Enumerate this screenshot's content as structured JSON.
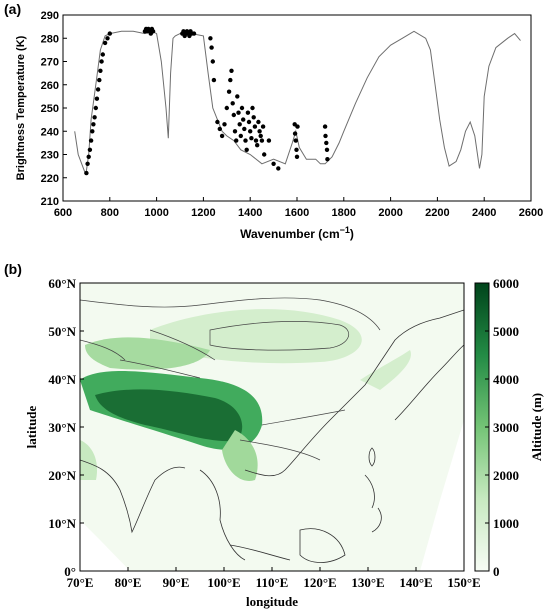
{
  "chart_data": [
    {
      "panel_label": "(a)",
      "type": "line+scatter",
      "xlabel": "Wavenumber (cm",
      "xlabel_sup": "−1",
      "xlabel_close": ")",
      "ylabel": "Brightness Temperature (K)",
      "xlim": [
        600,
        2600
      ],
      "ylim": [
        210,
        290
      ],
      "xticks": [
        "600",
        "800",
        "1000",
        "1200",
        "1400",
        "1600",
        "1800",
        "2000",
        "2200",
        "2400",
        "2600"
      ],
      "yticks": [
        "210",
        "220",
        "230",
        "240",
        "250",
        "260",
        "270",
        "280",
        "290"
      ],
      "series": [
        {
          "style": "line",
          "color": "#6e6e6e",
          "x": [
            650,
            665,
            680,
            695,
            700,
            710,
            720,
            740,
            760,
            780,
            800,
            850,
            900,
            950,
            980,
            1000,
            1020,
            1040,
            1050,
            1060,
            1070,
            1080,
            1100,
            1150,
            1200,
            1220,
            1240,
            1260,
            1280,
            1300,
            1330,
            1360,
            1400,
            1450,
            1500,
            1550,
            1580,
            1595,
            1610,
            1640,
            1680,
            1700,
            1720,
            1750,
            1780,
            1800,
            1850,
            1900,
            1950,
            2000,
            2050,
            2100,
            2150,
            2170,
            2190,
            2210,
            2230,
            2250,
            2280,
            2300,
            2320,
            2340,
            2360,
            2380,
            2390,
            2400,
            2420,
            2450,
            2500,
            2530,
            2555
          ],
          "y": [
            240,
            230,
            226,
            222,
            223,
            230,
            245,
            260,
            275,
            281,
            282,
            283,
            283,
            282,
            283,
            282,
            270,
            250,
            237,
            265,
            280,
            281,
            282,
            282,
            281,
            265,
            250,
            245,
            240,
            238,
            236,
            232,
            230,
            226,
            228,
            226,
            235,
            240,
            233,
            228,
            228,
            226,
            226,
            229,
            235,
            240,
            252,
            263,
            272,
            277,
            280,
            283,
            280,
            275,
            260,
            245,
            233,
            225,
            227,
            232,
            240,
            244,
            238,
            224,
            230,
            255,
            268,
            276,
            280,
            282,
            279
          ]
        },
        {
          "style": "markers",
          "color": "#000000",
          "x": [
            700,
            705,
            710,
            715,
            720,
            725,
            730,
            735,
            740,
            745,
            750,
            755,
            760,
            765,
            770,
            780,
            790,
            800,
            950,
            955,
            960,
            965,
            970,
            975,
            980,
            985,
            1110,
            1115,
            1120,
            1125,
            1130,
            1135,
            1140,
            1145,
            1150,
            1160,
            1230,
            1235,
            1240,
            1245,
            1260,
            1270,
            1280,
            1290,
            1300,
            1310,
            1315,
            1320,
            1325,
            1330,
            1335,
            1340,
            1345,
            1350,
            1355,
            1360,
            1365,
            1370,
            1375,
            1380,
            1385,
            1390,
            1395,
            1400,
            1405,
            1410,
            1415,
            1420,
            1425,
            1430,
            1435,
            1440,
            1445,
            1450,
            1455,
            1460,
            1480,
            1500,
            1520,
            1590,
            1592,
            1595,
            1598,
            1600,
            1602,
            1720,
            1722,
            1725,
            1728,
            1730
          ],
          "y": [
            222,
            226,
            229,
            232,
            236,
            240,
            243,
            246,
            250,
            254,
            258,
            262,
            266,
            270,
            273,
            278,
            280,
            282,
            283,
            284,
            283,
            284,
            283,
            282,
            284,
            283,
            282,
            283,
            281,
            282,
            283,
            282,
            281,
            283,
            282,
            282,
            280,
            276,
            270,
            262,
            244,
            241,
            238,
            243,
            250,
            257,
            262,
            266,
            252,
            247,
            240,
            236,
            255,
            248,
            243,
            238,
            250,
            245,
            241,
            236,
            232,
            248,
            244,
            240,
            237,
            250,
            246,
            242,
            236,
            234,
            244,
            240,
            238,
            236,
            242,
            230,
            236,
            226,
            224,
            243,
            239,
            236,
            232,
            229,
            242,
            242,
            238,
            235,
            232,
            228
          ]
        }
      ]
    },
    {
      "panel_label": "(b)",
      "type": "heatmap",
      "xlabel": "longitude",
      "ylabel": "latitude",
      "xticks": [
        "70°E",
        "80°E",
        "90°E",
        "100°E",
        "110°E",
        "120°E",
        "130°E",
        "140°E",
        "150°E"
      ],
      "yticks": [
        "0°",
        "10°N",
        "20°N",
        "30°N",
        "40°N",
        "50°N",
        "60°N"
      ],
      "xlim": [
        70,
        150
      ],
      "ylim": [
        0,
        60
      ],
      "colorbar_label": "Altitude (m)",
      "colorbar_ticks": [
        "0",
        "1000",
        "2000",
        "3000",
        "4000",
        "5000",
        "6000"
      ],
      "colorbar_range": [
        0,
        6000
      ],
      "colors": {
        "low": "#f7fcf5",
        "mid": "#74c476",
        "high": "#00441b"
      }
    }
  ]
}
